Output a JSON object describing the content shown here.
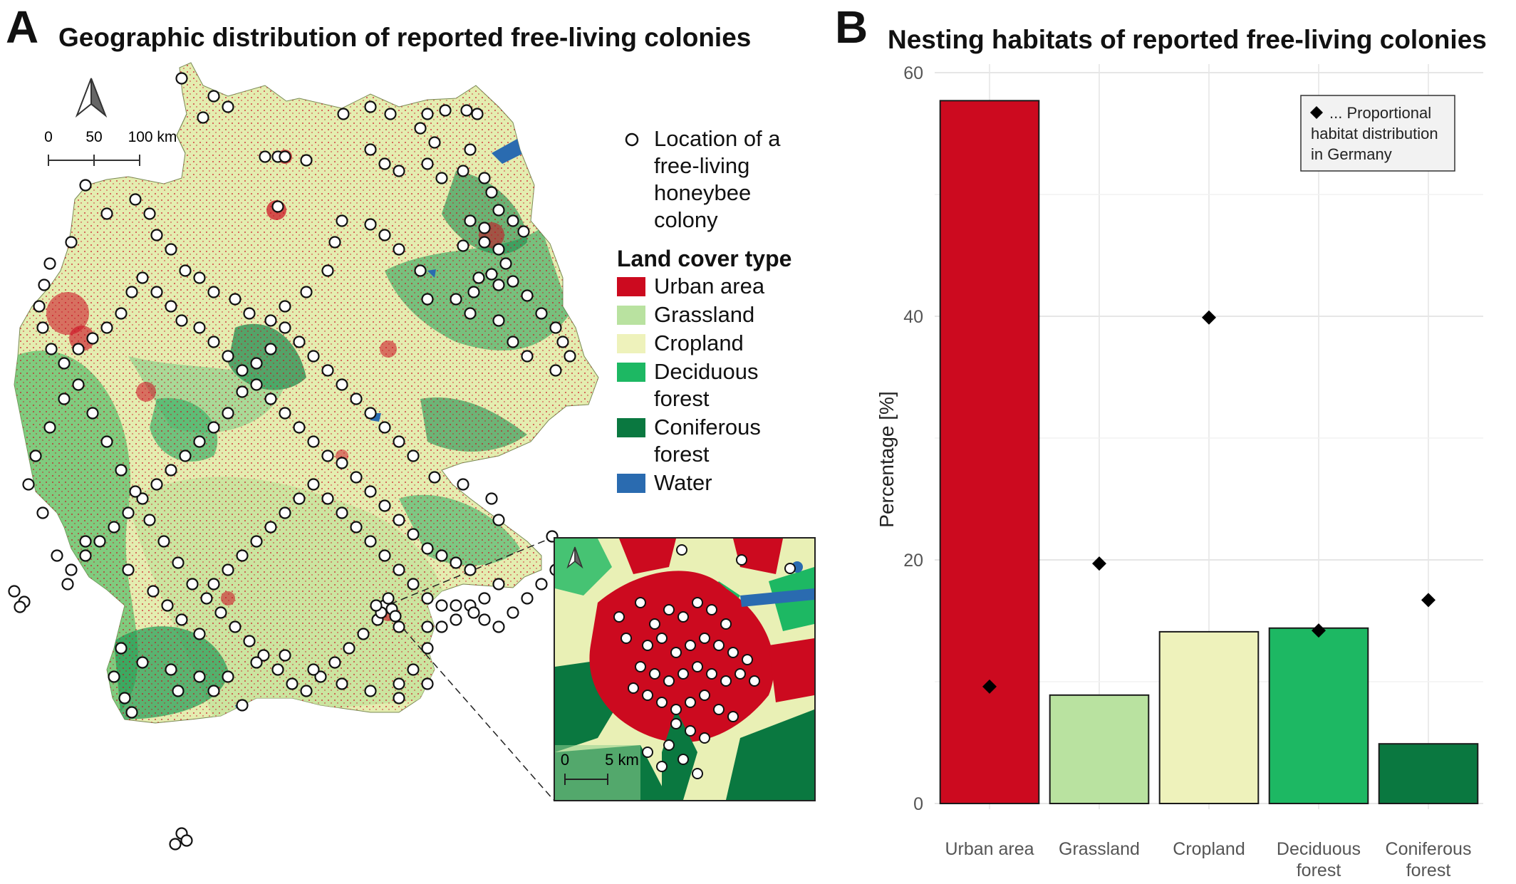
{
  "panel_a": {
    "letter": "A",
    "title": "Geographic distribution of reported free-living colonies",
    "scalebar": {
      "labels": [
        "0",
        "50",
        "100 km"
      ]
    },
    "legend": {
      "point_label_lines": [
        "Location of a",
        "free-living",
        "honeybee",
        "colony"
      ],
      "heading": "Land cover type",
      "items": [
        {
          "label_lines": [
            "Urban area"
          ],
          "color": "#cc0a1f"
        },
        {
          "label_lines": [
            "Grassland"
          ],
          "color": "#b9e2a0"
        },
        {
          "label_lines": [
            "Cropland"
          ],
          "color": "#eef2bb"
        },
        {
          "label_lines": [
            "Deciduous",
            "forest"
          ],
          "color": "#1db863"
        },
        {
          "label_lines": [
            "Coniferous",
            "forest"
          ],
          "color": "#0a7840"
        },
        {
          "label_lines": [
            "Water"
          ],
          "color": "#2a6bb0"
        }
      ]
    },
    "inset": {
      "scalebar_labels": [
        "0",
        "5 km"
      ]
    },
    "icons": [
      "north-arrow-icon",
      "north-arrow-icon"
    ]
  },
  "panel_b": {
    "letter": "B",
    "title": "Nesting habitats of reported free-living colonies"
  },
  "chart_data": {
    "type": "bar",
    "title": "Nesting habitats of reported free-living colonies",
    "xlabel": "",
    "ylabel": "Percentage [%]",
    "ylim": [
      0,
      60
    ],
    "yticks": [
      0,
      20,
      40,
      60
    ],
    "categories": [
      "Urban area",
      "Grassland",
      "Cropland",
      "Deciduous forest",
      "Coniferous forest"
    ],
    "category_label_lines": [
      [
        "Urban area"
      ],
      [
        "Grassland"
      ],
      [
        "Cropland"
      ],
      [
        "Deciduous",
        "forest"
      ],
      [
        "Coniferous",
        "forest"
      ]
    ],
    "bar_colors": [
      "#cc0a1f",
      "#b9e2a0",
      "#eef2bb",
      "#1db863",
      "#0a7840"
    ],
    "series": [
      {
        "kind": "bar",
        "values": [
          57.7,
          8.9,
          14.1,
          14.4,
          4.9
        ]
      },
      {
        "kind": "diamond",
        "values": [
          9.6,
          19.7,
          39.9,
          14.2,
          16.7
        ]
      }
    ],
    "legend": {
      "position": "top-right",
      "label_lines": [
        "... Proportional",
        "habitat distribution",
        "in Germany"
      ]
    },
    "grid": true
  }
}
